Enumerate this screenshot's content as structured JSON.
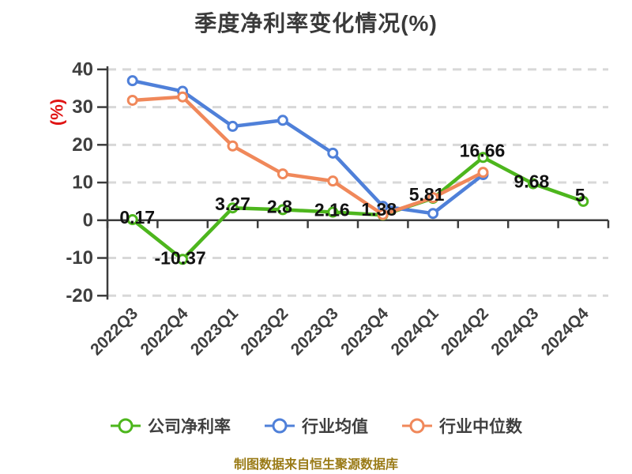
{
  "title": "季度净利率变化情况(%)",
  "y_axis_unit": "(%)",
  "footer": {
    "text": "制图数据来自恒生聚源数据库"
  },
  "colors": {
    "title": "#3a3a3a",
    "axis_line": "#3c3c3c",
    "axis_label": "#3f3f3f",
    "grid_line": "#d8d8d8",
    "data_label": "#121212",
    "unit_label": "#e01414",
    "footer_text": "#9a7b17",
    "marker_fill": "#ffffff"
  },
  "chart_data": {
    "type": "line",
    "title": "季度净利率变化情况(%)",
    "xlabel": "",
    "ylabel": "(%)",
    "ylim": [
      -20,
      40
    ],
    "y_ticks": [
      40,
      30,
      20,
      10,
      0,
      -10,
      -20
    ],
    "grid": "dashed horizontal",
    "legend_position": "bottom",
    "categories": [
      "2022Q3",
      "2022Q4",
      "2023Q1",
      "2023Q2",
      "2023Q3",
      "2023Q4",
      "2024Q1",
      "2024Q2",
      "2024Q3",
      "2024Q4"
    ],
    "series": [
      {
        "name": "公司净利率",
        "color": "#4db61d",
        "values": [
          0.17,
          -10.37,
          3.27,
          2.8,
          2.16,
          1.38,
          5.81,
          16.66,
          9.68,
          5
        ],
        "labels": [
          "0.17",
          "-10.37",
          "3.27",
          "2.8",
          "2.16",
          "1.38",
          "5.81",
          "16.66",
          "9.68",
          "5"
        ]
      },
      {
        "name": "行业均值",
        "color": "#4f80d9",
        "values": [
          37,
          34.2,
          24.9,
          26.5,
          17.8,
          3.7,
          1.8,
          12.1,
          null,
          null
        ]
      },
      {
        "name": "行业中位数",
        "color": "#f0885a",
        "values": [
          31.8,
          32.7,
          19.7,
          12.3,
          10.4,
          1.5,
          6.0,
          12.7,
          null,
          null
        ]
      }
    ]
  }
}
